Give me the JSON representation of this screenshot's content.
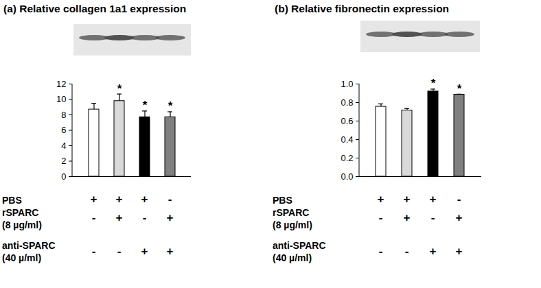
{
  "chart_data": [
    {
      "type": "bar",
      "title": "(a) Relative collagen 1a1 expression",
      "categories": [
        null,
        null,
        null,
        null
      ],
      "values": [
        8.7,
        9.8,
        7.7,
        7.7
      ],
      "errors": [
        0.8,
        0.9,
        0.8,
        0.7
      ],
      "colors": [
        "#ffffff",
        "#d9d9d9",
        "#000000",
        "#808080"
      ],
      "significance": [
        null,
        "*",
        "*",
        "*"
      ],
      "ylim": [
        0,
        12
      ],
      "yticks": [
        0,
        2,
        4,
        6,
        8,
        10,
        12
      ],
      "treatments": [
        {
          "label": [
            "PBS"
          ],
          "signs": [
            "+",
            "+",
            "+",
            "-"
          ]
        },
        {
          "label": [
            "rSPARC",
            "(8 µg/ml)"
          ],
          "signs": [
            "-",
            "+",
            "-",
            "+"
          ]
        },
        {
          "label": [
            "anti-SPARC",
            "(40 µ/ml)"
          ],
          "signs": [
            "-",
            "-",
            "+",
            "+"
          ]
        }
      ]
    },
    {
      "type": "bar",
      "title": "(b) Relative fibronectin expression",
      "categories": [
        null,
        null,
        null,
        null
      ],
      "values": [
        0.755,
        0.715,
        0.92,
        0.885
      ],
      "errors": [
        0.03,
        0.02,
        0.025,
        0.005
      ],
      "colors": [
        "#ffffff",
        "#d9d9d9",
        "#000000",
        "#808080"
      ],
      "significance": [
        null,
        null,
        "*",
        "*"
      ],
      "ylim": [
        0,
        1
      ],
      "yticks": [
        {
          "value": 0,
          "label": "0.0"
        },
        {
          "value": 0.2,
          "label": "0.2"
        },
        {
          "value": 0.4,
          "label": "0.4"
        },
        {
          "value": 0.6,
          "label": "0.6"
        },
        {
          "value": 0.8,
          "label": "0.8"
        },
        {
          "value": 1,
          "label": "1.0"
        }
      ],
      "treatments": [
        {
          "label": [
            "PBS"
          ],
          "signs": [
            "+",
            "+",
            "+",
            "-"
          ]
        },
        {
          "label": [
            "rSPARC",
            "(8 µg/ml)"
          ],
          "signs": [
            "-",
            "+",
            "-",
            "+"
          ]
        },
        {
          "label": [
            "anti-SPARC",
            "(40 µ/ml)"
          ],
          "signs": [
            "-",
            "-",
            "+",
            "+"
          ]
        }
      ]
    }
  ]
}
